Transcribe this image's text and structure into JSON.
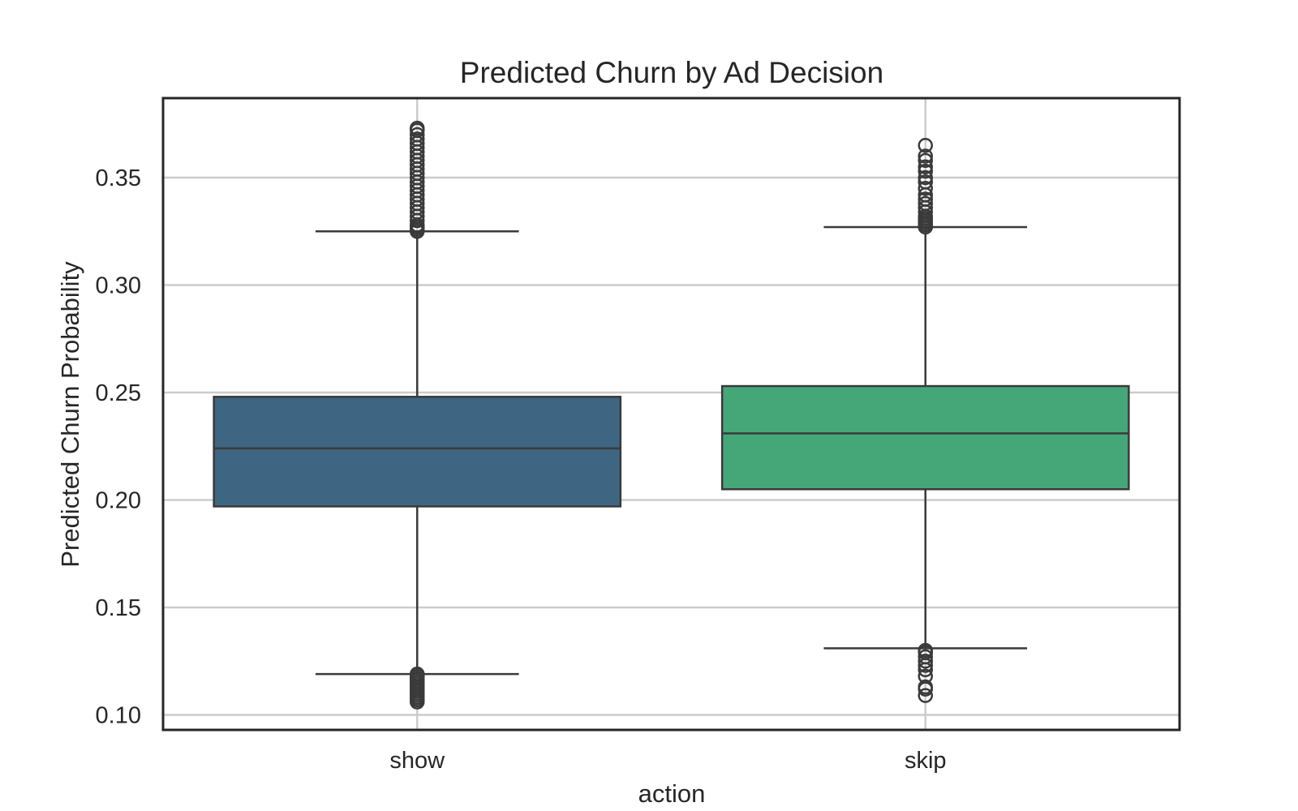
{
  "chart_data": {
    "type": "box",
    "title": "Predicted Churn by Ad Decision",
    "xlabel": "action",
    "ylabel": "Predicted Churn Probability",
    "ylim": [
      0.093,
      0.387
    ],
    "yticks": [
      0.1,
      0.15,
      0.2,
      0.25,
      0.3,
      0.35
    ],
    "ytick_labels": [
      "0.10",
      "0.15",
      "0.20",
      "0.25",
      "0.30",
      "0.35"
    ],
    "grid": true,
    "legend": "none",
    "categories": [
      "show",
      "skip"
    ],
    "boxes": [
      {
        "category": "show",
        "color": "#3e6682",
        "whisker_low": 0.119,
        "q1": 0.197,
        "median": 0.224,
        "q3": 0.248,
        "whisker_high": 0.325,
        "outliers_low": [
          0.106,
          0.107,
          0.108,
          0.109,
          0.11,
          0.111,
          0.112,
          0.113,
          0.114,
          0.115,
          0.116,
          0.117,
          0.118,
          0.119
        ],
        "outliers_high": [
          0.325,
          0.326,
          0.327,
          0.328,
          0.33,
          0.332,
          0.334,
          0.336,
          0.338,
          0.34,
          0.342,
          0.344,
          0.346,
          0.348,
          0.35,
          0.352,
          0.354,
          0.356,
          0.358,
          0.36,
          0.362,
          0.364,
          0.366,
          0.368,
          0.37,
          0.372,
          0.373
        ]
      },
      {
        "category": "skip",
        "color": "#45a778",
        "whisker_low": 0.131,
        "q1": 0.205,
        "median": 0.231,
        "q3": 0.253,
        "whisker_high": 0.327,
        "outliers_low": [
          0.109,
          0.112,
          0.113,
          0.118,
          0.121,
          0.123,
          0.125,
          0.127,
          0.129,
          0.13
        ],
        "outliers_high": [
          0.327,
          0.328,
          0.329,
          0.33,
          0.331,
          0.332,
          0.334,
          0.336,
          0.338,
          0.34,
          0.342,
          0.345,
          0.348,
          0.35,
          0.353,
          0.355,
          0.358,
          0.36,
          0.365
        ]
      }
    ]
  }
}
